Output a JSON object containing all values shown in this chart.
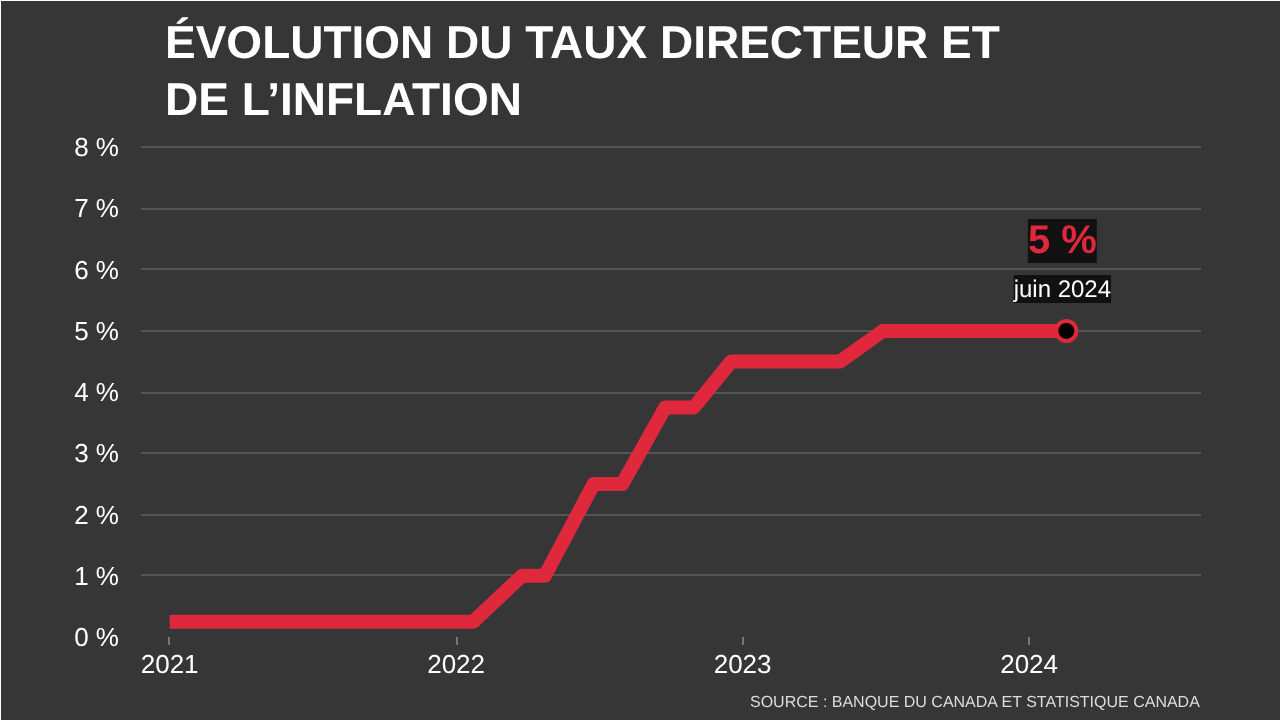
{
  "chart_data": {
    "type": "line",
    "title": "ÉVOLUTION DU TAUX DIRECTEUR ET\nDE L’INFLATION",
    "x": [
      2021.0,
      2022.06,
      2022.23,
      2022.31,
      2022.48,
      2022.58,
      2022.73,
      2022.83,
      2022.96,
      2023.34,
      2023.49,
      2024.13
    ],
    "series": [
      {
        "color": "#e0283c",
        "values": [
          0.25,
          0.25,
          1.0,
          1.0,
          2.5,
          2.5,
          3.75,
          3.75,
          4.5,
          4.5,
          5.0,
          5.0
        ]
      }
    ],
    "xlim": [
      2020.9,
      2024.6
    ],
    "xticks": [
      2021,
      2022,
      2023,
      2024
    ],
    "ylim": [
      0,
      8.2
    ],
    "yticks": [
      {
        "value": 0,
        "label": "0 %"
      },
      {
        "value": 1,
        "label": "1 %"
      },
      {
        "value": 2,
        "label": "2 %"
      },
      {
        "value": 3,
        "label": "3 %"
      },
      {
        "value": 4,
        "label": "4 %"
      },
      {
        "value": 5,
        "label": "5 %"
      },
      {
        "value": 6,
        "label": "6 %"
      },
      {
        "value": 7,
        "label": "7 %"
      },
      {
        "value": 8,
        "label": "8 %"
      }
    ],
    "grid": "y",
    "marker": "none",
    "line_style": "solid",
    "annotations": [
      {
        "text": "5 %",
        "x": 2024.13,
        "y": 5.0
      },
      {
        "text": "juin 2024",
        "x": 2024.13,
        "y": 5.0
      },
      "SOURCE : BANQUE DU CANADA ET STATISTIQUE CANADA"
    ]
  }
}
